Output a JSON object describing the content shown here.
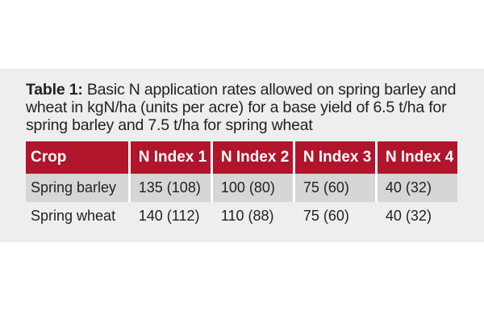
{
  "caption": {
    "label": "Table 1:",
    "text": " Basic N application rates allowed on spring barley and wheat in kgN/ha (units per acre) for a base yield of 6.5 t/ha for spring barley and 7.5 t/ha for spring wheat"
  },
  "table": {
    "headers": [
      "Crop",
      "N Index 1",
      "N Index 2",
      "N Index 3",
      "N Index 4"
    ],
    "rows": [
      [
        "Spring barley",
        "135 (108)",
        "100 (80)",
        "75 (60)",
        "40 (32)"
      ],
      [
        "Spring wheat",
        "140 (112)",
        "110 (88)",
        "75 (60)",
        "40 (32)"
      ]
    ]
  },
  "colors": {
    "header_bg": "#b0152b",
    "header_text": "#ffffff",
    "shaded_row": "#d6d6d6",
    "panel_bg": "#eeeeee"
  }
}
